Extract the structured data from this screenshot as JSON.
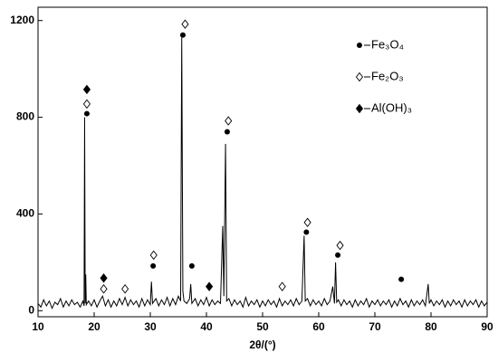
{
  "chart_data": {
    "type": "line",
    "x_label": "2θ/(°)",
    "xlim": [
      10,
      90
    ],
    "ylim": [
      -25,
      1255
    ],
    "xticks": [
      10,
      20,
      30,
      40,
      50,
      60,
      70,
      80,
      90
    ],
    "yticks": [
      0,
      400,
      800,
      1200
    ],
    "series": [
      {
        "color": "#000000",
        "x": [
          10,
          10.5,
          11,
          11.5,
          12,
          12.5,
          13,
          13.5,
          14,
          14.5,
          15,
          15.5,
          16,
          16.5,
          17,
          17.5,
          18,
          18.2,
          18.3,
          18.4,
          18.5,
          18.6,
          19,
          19.5,
          20,
          20.5,
          21,
          21.5,
          22,
          22.5,
          23,
          23.5,
          24,
          24.5,
          25,
          25.5,
          26,
          26.5,
          27,
          27.5,
          28,
          28.5,
          29,
          29.5,
          30,
          30.2,
          30.4,
          31,
          31.5,
          32,
          32.5,
          33,
          33.5,
          34,
          34.5,
          35,
          35.4,
          35.6,
          35.8,
          36,
          36.5,
          37,
          37.2,
          37.4,
          38,
          38.5,
          39,
          39.5,
          40,
          40.5,
          41,
          41.5,
          42,
          42.5,
          42.9,
          43.1,
          43.4,
          43.6,
          44,
          44.5,
          45,
          45.5,
          46,
          46.5,
          47,
          47.5,
          48,
          48.5,
          49,
          49.5,
          50,
          50.5,
          51,
          51.5,
          52,
          52.5,
          53,
          53.5,
          54,
          54.5,
          55,
          55.5,
          56,
          56.5,
          57,
          57.4,
          57.6,
          58,
          58.5,
          59,
          59.5,
          60,
          60.5,
          61,
          61.5,
          62,
          62.5,
          62.8,
          63,
          63.2,
          63.5,
          64,
          64.5,
          65,
          65.5,
          66,
          66.5,
          67,
          67.5,
          68,
          68.5,
          69,
          69.5,
          70,
          70.5,
          71,
          71.5,
          72,
          72.5,
          73,
          73.5,
          74,
          74.5,
          75,
          75.5,
          76,
          76.5,
          77,
          77.5,
          78,
          78.5,
          79,
          79.5,
          79.7,
          80,
          80.5,
          81,
          81.5,
          82,
          82.5,
          83,
          83.5,
          84,
          84.5,
          85,
          85.5,
          86,
          86.5,
          87,
          87.5,
          88,
          88.5,
          89,
          89.5,
          90
        ],
        "values": [
          30,
          15,
          45,
          20,
          40,
          10,
          35,
          25,
          50,
          15,
          40,
          20,
          45,
          25,
          35,
          15,
          40,
          20,
          800,
          30,
          150,
          25,
          40,
          20,
          45,
          15,
          40,
          60,
          20,
          45,
          15,
          40,
          20,
          50,
          25,
          55,
          20,
          45,
          25,
          40,
          15,
          50,
          20,
          45,
          25,
          120,
          30,
          50,
          20,
          45,
          25,
          55,
          20,
          50,
          25,
          60,
          40,
          1130,
          80,
          40,
          30,
          50,
          110,
          30,
          50,
          20,
          45,
          25,
          55,
          20,
          45,
          25,
          40,
          30,
          350,
          60,
          690,
          40,
          50,
          20,
          45,
          25,
          40,
          15,
          55,
          20,
          40,
          25,
          45,
          15,
          40,
          20,
          45,
          25,
          40,
          15,
          50,
          20,
          40,
          25,
          45,
          20,
          50,
          25,
          40,
          310,
          40,
          50,
          20,
          45,
          25,
          40,
          20,
          50,
          25,
          40,
          100,
          30,
          200,
          35,
          45,
          20,
          45,
          25,
          40,
          15,
          45,
          20,
          40,
          25,
          50,
          15,
          40,
          25,
          45,
          20,
          40,
          25,
          45,
          15,
          40,
          20,
          50,
          25,
          40,
          15,
          45,
          20,
          40,
          25,
          45,
          20,
          110,
          30,
          45,
          20,
          40,
          25,
          45,
          15,
          40,
          20,
          45,
          25,
          40,
          15,
          45,
          20,
          40,
          25,
          45,
          15,
          40,
          20,
          35
        ]
      }
    ],
    "phases": [
      {
        "name": "Fe₃O₄",
        "marker": "filled-circle",
        "x": [
          18.7,
          30.5,
          35.8,
          37.4,
          43.7,
          57.8,
          63.4,
          74.7
        ],
        "y": [
          815,
          185,
          1140,
          185,
          740,
          325,
          230,
          130
        ]
      },
      {
        "name": "Fe₂O₃",
        "marker": "open-diamond",
        "x": [
          18.7,
          21.7,
          25.5,
          30.6,
          36.2,
          43.9,
          53.5,
          58.0,
          63.8
        ],
        "y": [
          855,
          90,
          90,
          230,
          1185,
          785,
          100,
          365,
          270
        ]
      },
      {
        "name": "Al(OH)₃",
        "marker": "filled-diamond",
        "x": [
          18.7,
          21.7,
          40.5
        ],
        "y": [
          915,
          135,
          100
        ]
      }
    ]
  }
}
